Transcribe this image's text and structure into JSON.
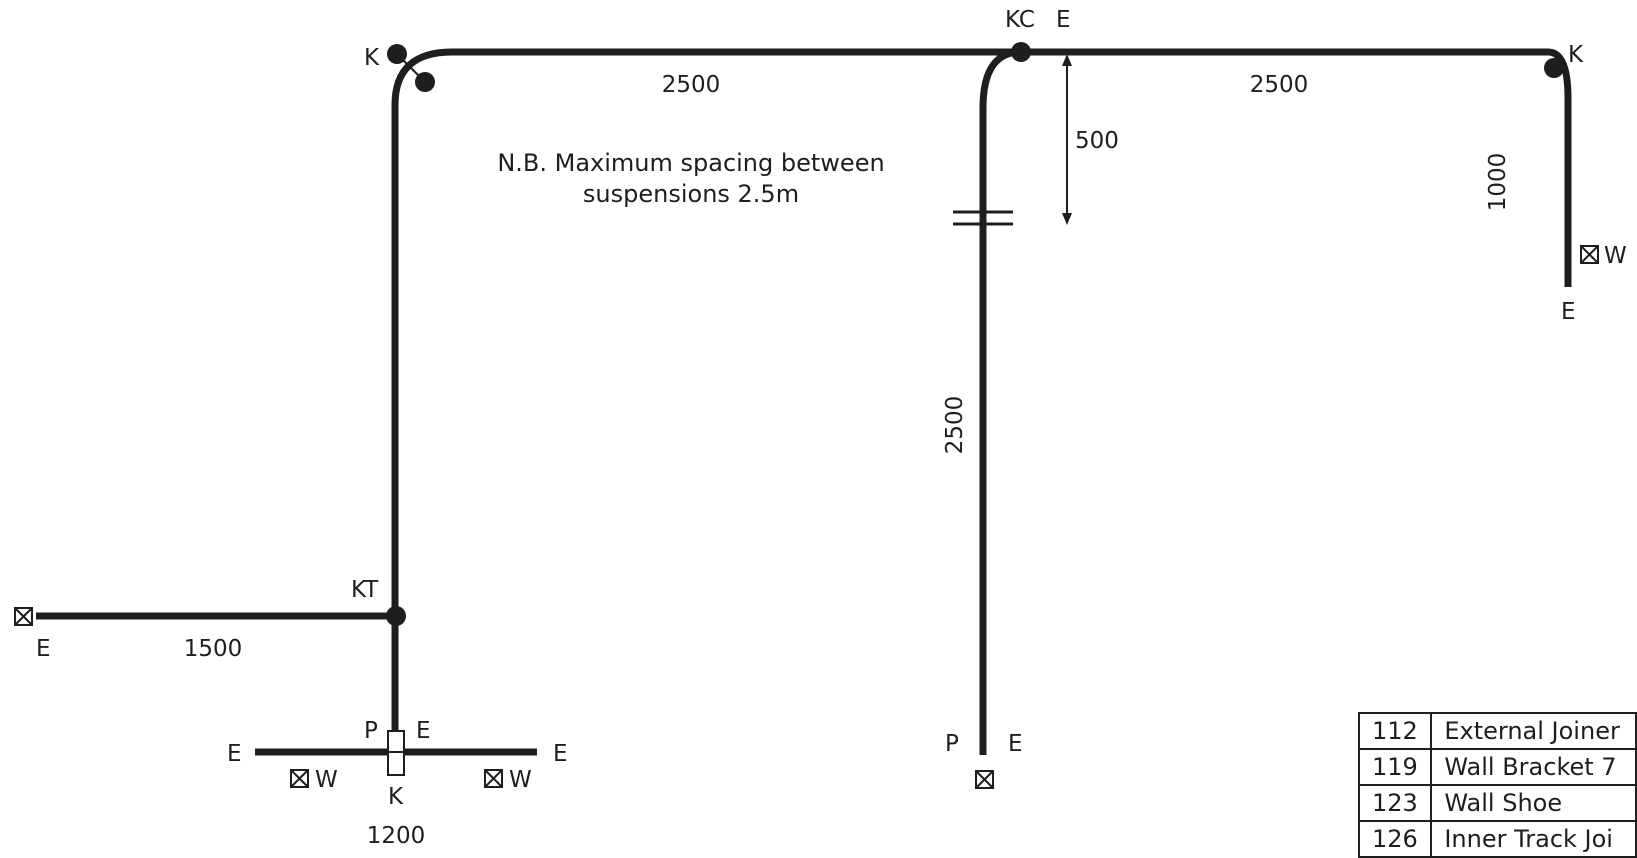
{
  "note": {
    "line1": "N.B. Maximum spacing between",
    "line2": "suspensions 2.5m"
  },
  "dimensions": {
    "top_left_run": "2500",
    "top_right_run": "2500",
    "drop_gap": "500",
    "right_drop": "1000",
    "middle_drop": "2500",
    "left_branch": "1500",
    "bottom_cross": "1200"
  },
  "labels": {
    "k_top_left": "K",
    "kc": "KC",
    "e_top": "E",
    "k_top_right": "K",
    "w_right": "W",
    "e_right": "E",
    "kt": "KT",
    "e_left_branch": "E",
    "p_bottom_left": "P",
    "e_bottom_left_top": "E",
    "e_cross_left": "E",
    "e_cross_right": "E",
    "w_cross_left": "W",
    "w_cross_right": "W",
    "k_bottom": "K",
    "p_middle": "P",
    "e_middle": "E"
  },
  "legend": [
    {
      "code": "112",
      "desc": "External Joiner"
    },
    {
      "code": "119",
      "desc": "Wall Bracket 7"
    },
    {
      "code": "123",
      "desc": "Wall Shoe"
    },
    {
      "code": "126",
      "desc": "Inner Track Joi"
    }
  ]
}
